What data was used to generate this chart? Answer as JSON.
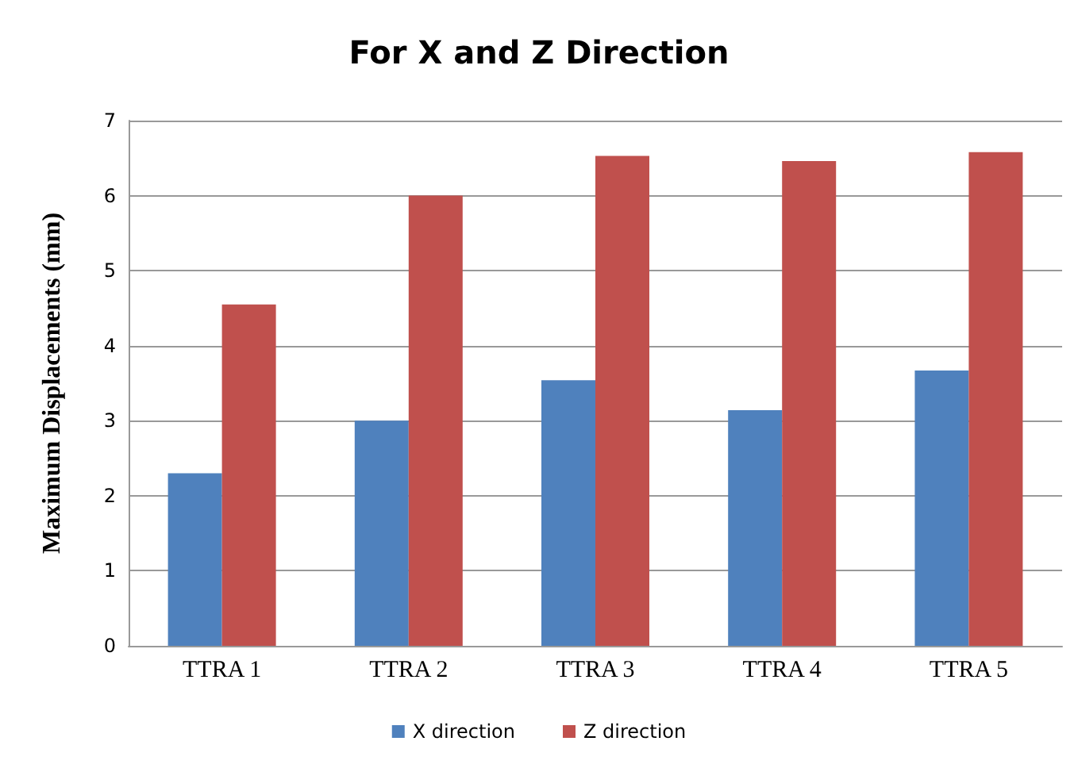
{
  "chart_data": {
    "type": "bar",
    "title": "For X and Z Direction",
    "ylabel": "Maximum Displacements (mm)",
    "categories": [
      "TTRA 1",
      "TTRA 2",
      "TTRA 3",
      "TTRA 4",
      "TTRA 5"
    ],
    "series": [
      {
        "name": "X direction",
        "color": "#4f81bd",
        "values": [
          2.3,
          3.0,
          3.54,
          3.14,
          3.67
        ]
      },
      {
        "name": "Z direction",
        "color": "#c0504d",
        "values": [
          4.55,
          6.0,
          6.53,
          6.46,
          6.58
        ]
      }
    ],
    "ylim": [
      0,
      7
    ],
    "yticks": [
      0,
      1,
      2,
      3,
      4,
      5,
      6,
      7
    ],
    "grid": "y",
    "legend": "bottom"
  }
}
